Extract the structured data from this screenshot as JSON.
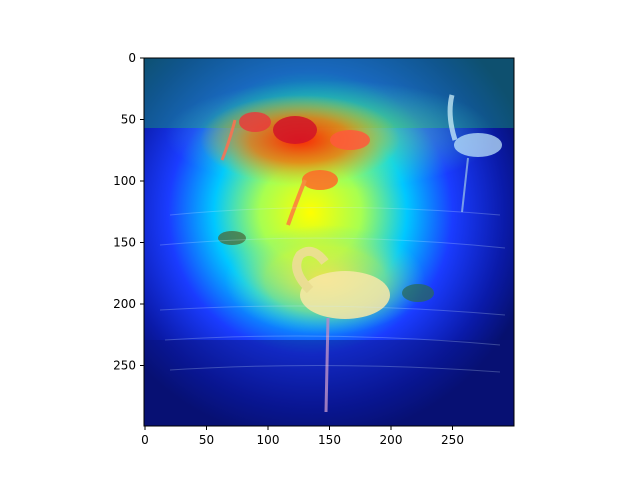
{
  "figure": {
    "background": "#ffffff"
  },
  "image": {
    "description_kind": "photo with attention heatmap overlay",
    "colormap": [
      "#00007f",
      "#0000ff",
      "#00bfff",
      "#7fff7f",
      "#ffff00",
      "#ff7f00",
      "#ff0000"
    ]
  },
  "axes": {
    "x": {
      "ticks": [
        {
          "value": 0,
          "label": "0"
        },
        {
          "value": 50,
          "label": "50"
        },
        {
          "value": 100,
          "label": "100"
        },
        {
          "value": 150,
          "label": "150"
        },
        {
          "value": 200,
          "label": "200"
        },
        {
          "value": 250,
          "label": "250"
        }
      ]
    },
    "y": {
      "ticks": [
        {
          "value": 0,
          "label": "0"
        },
        {
          "value": 50,
          "label": "50"
        },
        {
          "value": 100,
          "label": "100"
        },
        {
          "value": 150,
          "label": "150"
        },
        {
          "value": 200,
          "label": "200"
        },
        {
          "value": 250,
          "label": "250"
        }
      ]
    }
  }
}
